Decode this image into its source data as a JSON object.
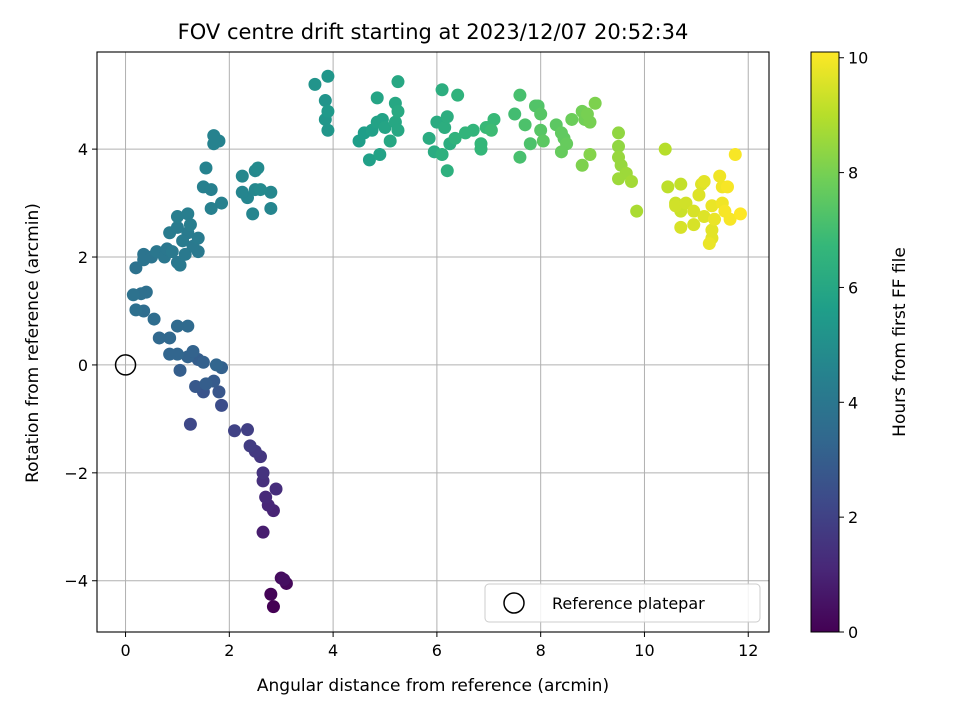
{
  "chart_data": {
    "type": "scatter",
    "title": "FOV centre drift starting at 2023/12/07 20:52:34",
    "xlabel": "Angular distance from reference (arcmin)",
    "ylabel": "Rotation from reference (arcmin)",
    "xlim": [
      -0.55,
      12.4
    ],
    "ylim": [
      -4.95,
      5.8
    ],
    "xticks": [
      0,
      2,
      4,
      6,
      8,
      10,
      12
    ],
    "yticks": [
      -4,
      -2,
      0,
      2,
      4
    ],
    "grid": true,
    "legend": {
      "location": "lower-right",
      "entries": [
        "Reference platepar"
      ]
    },
    "reference_point": {
      "x": 0,
      "y": 0
    },
    "colorbar": {
      "label": "Hours from first FF file",
      "range": [
        0,
        10.1
      ],
      "ticks": [
        0,
        2,
        4,
        6,
        8,
        10
      ],
      "colormap": "viridis"
    },
    "colormap_stops": [
      "#440154",
      "#482878",
      "#3e4989",
      "#31688e",
      "#26828e",
      "#1f9e89",
      "#35b779",
      "#6ece58",
      "#b5de2b",
      "#fde725"
    ],
    "series": [
      {
        "points": [
          [
            2.85,
            -4.48,
            0.0
          ],
          [
            2.8,
            -4.25,
            0.1
          ],
          [
            3.1,
            -4.05,
            0.2
          ],
          [
            3.0,
            -3.95,
            0.3
          ],
          [
            3.05,
            -3.98,
            0.4
          ],
          [
            2.65,
            -3.1,
            0.8
          ],
          [
            2.85,
            -2.7,
            1.0
          ],
          [
            2.75,
            -2.6,
            1.1
          ],
          [
            2.7,
            -2.45,
            1.2
          ],
          [
            2.9,
            -2.3,
            1.3
          ],
          [
            2.65,
            -2.15,
            1.4
          ],
          [
            2.65,
            -2.0,
            1.5
          ],
          [
            2.6,
            -1.7,
            1.6
          ],
          [
            2.5,
            -1.6,
            1.7
          ],
          [
            2.4,
            -1.5,
            1.8
          ],
          [
            2.35,
            -1.2,
            1.9
          ],
          [
            2.1,
            -1.22,
            2.0
          ],
          [
            1.25,
            -1.1,
            2.2
          ],
          [
            1.85,
            -0.75,
            2.4
          ],
          [
            1.5,
            -0.5,
            2.6
          ],
          [
            1.8,
            -0.5,
            2.7
          ],
          [
            1.35,
            -0.4,
            2.8
          ],
          [
            1.7,
            -0.3,
            2.9
          ],
          [
            1.55,
            -0.35,
            3.0
          ],
          [
            1.05,
            -0.1,
            3.0
          ],
          [
            1.4,
            0.1,
            3.0
          ],
          [
            1.5,
            0.05,
            3.1
          ],
          [
            1.85,
            -0.05,
            3.1
          ],
          [
            1.2,
            0.15,
            3.2
          ],
          [
            1.3,
            0.25,
            3.2
          ],
          [
            1.0,
            0.2,
            3.3
          ],
          [
            0.85,
            0.2,
            3.3
          ],
          [
            1.75,
            0.0,
            3.3
          ],
          [
            0.85,
            0.5,
            3.4
          ],
          [
            0.65,
            0.5,
            3.4
          ],
          [
            1.2,
            0.72,
            3.5
          ],
          [
            1.0,
            0.72,
            3.5
          ],
          [
            0.55,
            0.85,
            3.6
          ],
          [
            0.35,
            1.0,
            3.6
          ],
          [
            0.2,
            1.02,
            3.7
          ],
          [
            0.4,
            1.35,
            3.7
          ],
          [
            0.3,
            1.32,
            3.7
          ],
          [
            0.15,
            1.3,
            3.8
          ],
          [
            0.2,
            1.8,
            3.8
          ],
          [
            0.35,
            1.95,
            3.9
          ],
          [
            0.35,
            2.05,
            3.9
          ],
          [
            0.5,
            2.0,
            3.9
          ],
          [
            0.6,
            2.1,
            4.0
          ],
          [
            0.75,
            2.0,
            4.0
          ],
          [
            0.8,
            2.15,
            4.0
          ],
          [
            1.0,
            1.9,
            4.0
          ],
          [
            0.9,
            2.1,
            4.1
          ],
          [
            1.05,
            1.85,
            4.1
          ],
          [
            1.15,
            2.05,
            4.1
          ],
          [
            1.4,
            2.1,
            4.1
          ],
          [
            1.3,
            2.2,
            4.1
          ],
          [
            1.4,
            2.35,
            4.2
          ],
          [
            1.2,
            2.45,
            4.2
          ],
          [
            1.1,
            2.3,
            4.2
          ],
          [
            0.85,
            2.45,
            4.2
          ],
          [
            1.0,
            2.55,
            4.2
          ],
          [
            1.25,
            2.6,
            4.3
          ],
          [
            1.0,
            2.75,
            4.3
          ],
          [
            1.2,
            2.8,
            4.3
          ],
          [
            1.65,
            2.9,
            4.4
          ],
          [
            1.85,
            3.0,
            4.4
          ],
          [
            1.5,
            3.3,
            4.4
          ],
          [
            1.65,
            3.25,
            4.4
          ],
          [
            1.55,
            3.65,
            4.5
          ],
          [
            1.7,
            4.1,
            4.5
          ],
          [
            1.8,
            4.15,
            4.5
          ],
          [
            1.7,
            4.25,
            4.5
          ],
          [
            2.45,
            2.8,
            4.6
          ],
          [
            2.8,
            2.9,
            4.6
          ],
          [
            2.35,
            3.1,
            4.6
          ],
          [
            2.25,
            3.2,
            4.6
          ],
          [
            2.5,
            3.25,
            4.7
          ],
          [
            2.8,
            3.2,
            4.7
          ],
          [
            2.25,
            3.5,
            4.7
          ],
          [
            2.5,
            3.6,
            4.7
          ],
          [
            2.55,
            3.65,
            4.8
          ],
          [
            2.6,
            3.25,
            4.8
          ],
          [
            3.65,
            5.2,
            5.2
          ],
          [
            3.85,
            4.9,
            5.2
          ],
          [
            3.9,
            5.35,
            5.3
          ],
          [
            3.85,
            4.55,
            5.3
          ],
          [
            3.9,
            4.35,
            5.3
          ],
          [
            3.9,
            4.7,
            5.4
          ],
          [
            4.5,
            4.15,
            5.6
          ],
          [
            4.6,
            4.3,
            5.6
          ],
          [
            4.75,
            4.35,
            5.7
          ],
          [
            4.7,
            3.8,
            5.7
          ],
          [
            4.85,
            4.5,
            5.8
          ],
          [
            4.95,
            4.55,
            5.8
          ],
          [
            4.9,
            3.9,
            5.8
          ],
          [
            4.85,
            4.95,
            5.9
          ],
          [
            5.0,
            4.4,
            5.9
          ],
          [
            5.2,
            4.5,
            6.0
          ],
          [
            5.25,
            4.35,
            6.0
          ],
          [
            5.1,
            4.15,
            6.0
          ],
          [
            5.2,
            4.85,
            6.0
          ],
          [
            5.25,
            5.25,
            6.0
          ],
          [
            5.25,
            4.7,
            6.1
          ],
          [
            5.85,
            4.2,
            6.2
          ],
          [
            5.95,
            3.95,
            6.2
          ],
          [
            6.0,
            4.5,
            6.2
          ],
          [
            6.1,
            5.1,
            6.3
          ],
          [
            6.15,
            4.4,
            6.3
          ],
          [
            6.2,
            4.6,
            6.3
          ],
          [
            6.25,
            4.1,
            6.3
          ],
          [
            6.1,
            3.9,
            6.4
          ],
          [
            6.2,
            3.6,
            6.4
          ],
          [
            6.35,
            4.2,
            6.5
          ],
          [
            6.4,
            5.0,
            6.5
          ],
          [
            6.55,
            4.3,
            6.6
          ],
          [
            6.7,
            4.35,
            6.6
          ],
          [
            6.85,
            4.1,
            6.7
          ],
          [
            6.85,
            4.0,
            6.7
          ],
          [
            6.95,
            4.4,
            6.8
          ],
          [
            7.0,
            4.4,
            6.8
          ],
          [
            7.1,
            4.55,
            6.8
          ],
          [
            7.05,
            4.35,
            6.9
          ],
          [
            7.5,
            4.65,
            7.0
          ],
          [
            7.6,
            3.85,
            7.1
          ],
          [
            7.6,
            5.0,
            7.1
          ],
          [
            7.7,
            4.45,
            7.2
          ],
          [
            7.8,
            4.1,
            7.2
          ],
          [
            7.9,
            4.8,
            7.3
          ],
          [
            7.95,
            4.8,
            7.3
          ],
          [
            8.0,
            4.65,
            7.4
          ],
          [
            8.0,
            4.35,
            7.4
          ],
          [
            8.05,
            4.15,
            7.5
          ],
          [
            8.3,
            4.45,
            7.5
          ],
          [
            8.4,
            4.3,
            7.6
          ],
          [
            8.45,
            4.2,
            7.6
          ],
          [
            8.5,
            4.1,
            7.7
          ],
          [
            8.4,
            3.95,
            7.7
          ],
          [
            8.6,
            4.55,
            7.8
          ],
          [
            8.8,
            4.7,
            7.9
          ],
          [
            8.85,
            4.55,
            7.9
          ],
          [
            8.95,
            4.5,
            8.0
          ],
          [
            8.9,
            4.65,
            8.0
          ],
          [
            9.05,
            4.85,
            8.1
          ],
          [
            8.8,
            3.7,
            8.1
          ],
          [
            8.95,
            3.9,
            8.2
          ],
          [
            9.5,
            4.3,
            8.4
          ],
          [
            9.5,
            4.05,
            8.4
          ],
          [
            9.5,
            3.85,
            8.5
          ],
          [
            9.55,
            3.7,
            8.5
          ],
          [
            9.65,
            3.55,
            8.6
          ],
          [
            9.5,
            3.45,
            8.6
          ],
          [
            9.75,
            3.4,
            8.7
          ],
          [
            9.85,
            2.85,
            8.8
          ],
          [
            10.4,
            4.0,
            9.0
          ],
          [
            10.45,
            3.3,
            9.1
          ],
          [
            10.7,
            3.35,
            9.2
          ],
          [
            10.6,
            3.0,
            9.3
          ],
          [
            10.7,
            2.85,
            9.3
          ],
          [
            10.6,
            2.95,
            9.4
          ],
          [
            10.8,
            3.0,
            9.4
          ],
          [
            10.7,
            2.55,
            9.5
          ],
          [
            10.95,
            2.6,
            9.5
          ],
          [
            10.95,
            2.85,
            9.5
          ],
          [
            11.05,
            3.15,
            9.6
          ],
          [
            11.1,
            3.35,
            9.6
          ],
          [
            11.15,
            2.75,
            9.6
          ],
          [
            11.15,
            3.4,
            9.7
          ],
          [
            11.3,
            2.35,
            9.7
          ],
          [
            11.3,
            2.5,
            9.7
          ],
          [
            11.25,
            2.25,
            9.8
          ],
          [
            11.3,
            2.95,
            9.8
          ],
          [
            11.35,
            2.7,
            9.8
          ],
          [
            11.45,
            3.5,
            9.9
          ],
          [
            11.5,
            3.3,
            9.9
          ],
          [
            11.5,
            3.0,
            9.9
          ],
          [
            11.55,
            2.85,
            10.0
          ],
          [
            11.6,
            3.3,
            10.0
          ],
          [
            11.65,
            2.7,
            10.0
          ],
          [
            11.75,
            3.9,
            10.0
          ],
          [
            11.85,
            2.8,
            10.1
          ]
        ]
      }
    ]
  }
}
